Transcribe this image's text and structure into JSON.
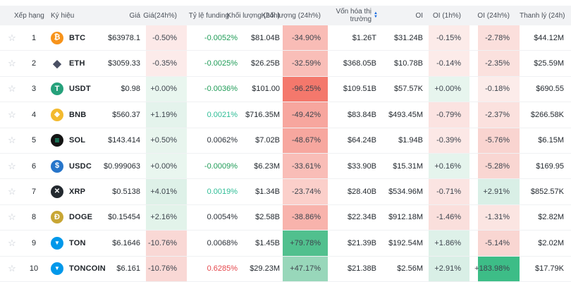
{
  "icons": {
    "star": "☆",
    "sort_up": "▲",
    "sort_down": "▼",
    "sort_color": "#1a6ce0"
  },
  "header": {
    "rank": "Xếp hạng",
    "symbol": "Ký hiệu",
    "price": "Giá",
    "price24": "Giá(24h%)",
    "funding": "Tỷ lệ funding",
    "vol24": "Khối lượng (24h)",
    "vol24pct": "Khối lượng (24h%)",
    "mcap": "Vốn hóa thị trường",
    "oi": "OI",
    "oi1h": "OI (1h%)",
    "oi24h": "OI (24h%)",
    "liq": "Thanh lý (24h)"
  },
  "rows": [
    {
      "rank": "1",
      "symbol": "BTC",
      "icon": {
        "name": "btc-coin-icon",
        "glyph": "₿",
        "bg": "#f7931a",
        "fg": "#ffffff",
        "fs": "11px"
      },
      "price": "$63978.1",
      "price24": {
        "text": "-0.50%",
        "bg": "#fce9e8"
      },
      "funding": {
        "text": "-0.0052%",
        "color": "#1f9c57"
      },
      "vol24": "$81.04B",
      "vol24pct": {
        "text": "-34.90%",
        "bg": "#f9bcb6"
      },
      "mcap": "$1.26T",
      "oi": "$31.24B",
      "oi1h": {
        "text": "-0.15%",
        "bg": "#fcebe9"
      },
      "oi24h": {
        "text": "-2.78%",
        "bg": "#fbdfdc"
      },
      "liq": "$44.12M"
    },
    {
      "rank": "2",
      "symbol": "ETH",
      "icon": {
        "name": "eth-coin-icon",
        "glyph": "◆",
        "bg": "transparent",
        "fg": "#4a5064",
        "fs": "15px"
      },
      "price": "$3059.33",
      "price24": {
        "text": "-0.35%",
        "bg": "#fcebea"
      },
      "funding": {
        "text": "-0.0025%",
        "color": "#1f9c57"
      },
      "vol24": "$26.25B",
      "vol24pct": {
        "text": "-32.59%",
        "bg": "#f9beb8"
      },
      "mcap": "$368.05B",
      "oi": "$10.78B",
      "oi1h": {
        "text": "-0.14%",
        "bg": "#fcebe9"
      },
      "oi24h": {
        "text": "-2.35%",
        "bg": "#fbe1de"
      },
      "liq": "$25.59M"
    },
    {
      "rank": "3",
      "symbol": "USDT",
      "icon": {
        "name": "usdt-coin-icon",
        "glyph": "T",
        "bg": "#26a17b",
        "fg": "#ffffff",
        "fs": "11px"
      },
      "price": "$0.98",
      "price24": {
        "text": "+0.00%",
        "bg": "#e9f6ef"
      },
      "funding": {
        "text": "-0.0036%",
        "color": "#1f9c57"
      },
      "vol24": "$101.00",
      "vol24pct": {
        "text": "-96.25%",
        "bg": "#f4786c"
      },
      "mcap": "$109.51B",
      "oi": "$57.57K",
      "oi1h": {
        "text": "+0.00%",
        "bg": "#e7f5ee"
      },
      "oi24h": {
        "text": "-0.18%",
        "bg": "#fcecea"
      },
      "liq": "$690.55"
    },
    {
      "rank": "4",
      "symbol": "BNB",
      "icon": {
        "name": "bnb-coin-icon",
        "glyph": "◆",
        "bg": "#f3ba2f",
        "fg": "#ffffff",
        "fs": "10px"
      },
      "price": "$560.37",
      "price24": {
        "text": "+1.19%",
        "bg": "#e4f3ec"
      },
      "funding": {
        "text": "0.0021%",
        "color": "#2ebd96"
      },
      "vol24": "$716.35M",
      "vol24pct": {
        "text": "-49.42%",
        "bg": "#f7a69e"
      },
      "mcap": "$83.84B",
      "oi": "$493.45M",
      "oi1h": {
        "text": "-0.79%",
        "bg": "#fbe3e1"
      },
      "oi24h": {
        "text": "-2.37%",
        "bg": "#fbe1de"
      },
      "liq": "$266.58K"
    },
    {
      "rank": "5",
      "symbol": "SOL",
      "icon": {
        "name": "sol-coin-icon",
        "glyph": "≡",
        "bg": "#141414",
        "fg": "#23e8a9",
        "fs": "12px"
      },
      "price": "$143.414",
      "price24": {
        "text": "+0.50%",
        "bg": "#e8f5ee"
      },
      "funding": {
        "text": "0.0062%",
        "color": "#2b3139"
      },
      "vol24": "$7.02B",
      "vol24pct": {
        "text": "-48.67%",
        "bg": "#f7a79f"
      },
      "mcap": "$64.24B",
      "oi": "$1.94B",
      "oi1h": {
        "text": "-0.39%",
        "bg": "#fce8e6"
      },
      "oi24h": {
        "text": "-5.76%",
        "bg": "#f9d4d0"
      },
      "liq": "$6.15M"
    },
    {
      "rank": "6",
      "symbol": "USDC",
      "icon": {
        "name": "usdc-coin-icon",
        "glyph": "$",
        "bg": "#2775ca",
        "fg": "#ffffff",
        "fs": "11px"
      },
      "price": "$0.999063",
      "price24": {
        "text": "+0.00%",
        "bg": "#e9f6ef"
      },
      "funding": {
        "text": "-0.0009%",
        "color": "#1f9c57"
      },
      "vol24": "$6.23M",
      "vol24pct": {
        "text": "-33.61%",
        "bg": "#f9bdb7"
      },
      "mcap": "$33.90B",
      "oi": "$15.31M",
      "oi1h": {
        "text": "+0.16%",
        "bg": "#e5f4ed"
      },
      "oi24h": {
        "text": "-5.28%",
        "bg": "#f9d6d2"
      },
      "liq": "$169.95"
    },
    {
      "rank": "7",
      "symbol": "XRP",
      "icon": {
        "name": "xrp-coin-icon",
        "glyph": "✕",
        "bg": "#23292f",
        "fg": "#ffffff",
        "fs": "10px"
      },
      "price": "$0.5138",
      "price24": {
        "text": "+4.01%",
        "bg": "#def1e8"
      },
      "funding": {
        "text": "0.0019%",
        "color": "#2ebd96"
      },
      "vol24": "$1.34B",
      "vol24pct": {
        "text": "-23.74%",
        "bg": "#fbcfca"
      },
      "mcap": "$28.40B",
      "oi": "$534.96M",
      "oi1h": {
        "text": "-0.71%",
        "bg": "#fbe4e2"
      },
      "oi24h": {
        "text": "+2.91%",
        "bg": "#d9efe6"
      },
      "liq": "$852.57K"
    },
    {
      "rank": "8",
      "symbol": "DOGE",
      "icon": {
        "name": "doge-coin-icon",
        "glyph": "Ð",
        "bg": "#c8a634",
        "fg": "#ffffff",
        "fs": "11px"
      },
      "price": "$0.15454",
      "price24": {
        "text": "+2.16%",
        "bg": "#e2f3ea"
      },
      "funding": {
        "text": "0.0054%",
        "color": "#2b3139"
      },
      "vol24": "$2.58B",
      "vol24pct": {
        "text": "-38.86%",
        "bg": "#f8b3ac"
      },
      "mcap": "$22.34B",
      "oi": "$912.18M",
      "oi1h": {
        "text": "-1.46%",
        "bg": "#fadfdc"
      },
      "oi24h": {
        "text": "-1.31%",
        "bg": "#fbe5e2"
      },
      "liq": "$2.82M"
    },
    {
      "rank": "9",
      "symbol": "TON",
      "icon": {
        "name": "ton-coin-icon",
        "glyph": "▼",
        "bg": "#0098ea",
        "fg": "#ffffff",
        "fs": "8px"
      },
      "price": "$6.1646",
      "price24": {
        "text": "-10.76%",
        "bg": "#f9d8d5"
      },
      "funding": {
        "text": "0.0068%",
        "color": "#2b3139"
      },
      "vol24": "$1.45B",
      "vol24pct": {
        "text": "+79.78%",
        "bg": "#51c08e"
      },
      "mcap": "$21.39B",
      "oi": "$192.54M",
      "oi1h": {
        "text": "+1.86%",
        "bg": "#def1e9"
      },
      "oi24h": {
        "text": "-5.14%",
        "bg": "#f9d6d2"
      },
      "liq": "$2.02M"
    },
    {
      "rank": "10",
      "symbol": "TONCOIN",
      "icon": {
        "name": "toncoin-coin-icon",
        "glyph": "▼",
        "bg": "#0098ea",
        "fg": "#ffffff",
        "fs": "8px"
      },
      "price": "$6.161",
      "price24": {
        "text": "-10.76%",
        "bg": "#f9d8d5"
      },
      "funding": {
        "text": "0.6285%",
        "color": "#e5464b"
      },
      "vol24": "$29.23M",
      "vol24pct": {
        "text": "+47.17%",
        "bg": "#98d7ba"
      },
      "mcap": "$21.38B",
      "oi": "$2.56M",
      "oi1h": {
        "text": "+2.91%",
        "bg": "#d9efe6"
      },
      "oi24h": {
        "text": "+183.98%",
        "bg": "#3dbd87"
      },
      "liq": "$17.79K"
    }
  ]
}
